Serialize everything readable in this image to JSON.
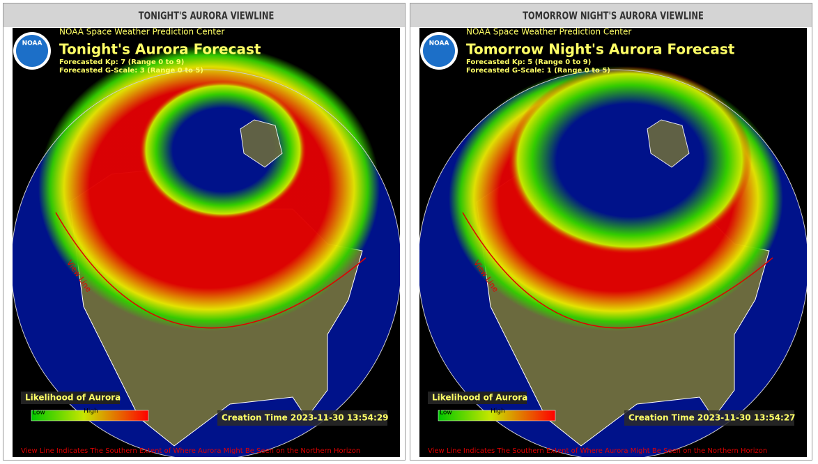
{
  "logo": "NOAA",
  "panels": [
    {
      "header": "TONIGHT'S AURORA VIEWLINE",
      "source": "NOAA Space Weather Prediction Center",
      "title": "Tonight's Aurora Forecast",
      "kp": "Forecasted Kp: 7 (Range 0 to 9)",
      "g_scale": "Forecasted G-Scale: 3 (Range 0 to 5)",
      "legend_title": "Likelihood of Aurora",
      "legend_low": "Low",
      "legend_high": "High",
      "creation_time": "Creation Time 2023-11-30 13:54:29",
      "view_line_label": "View Line",
      "footer": "View Line Indicates The Southern Extent of Where Aurora Might Be Seen on the Northern Horizon"
    },
    {
      "header": "TOMORROW NIGHT'S AURORA VIEWLINE",
      "source": "NOAA Space Weather Prediction Center",
      "title": "Tomorrow Night's Aurora Forecast",
      "kp": "Forecasted Kp: 5 (Range 0 to 9)",
      "g_scale": "Forecasted G-Scale: 1 (Range 0 to 5)",
      "legend_title": "Likelihood of Aurora",
      "legend_low": "Low",
      "legend_high": "High",
      "creation_time": "Creation Time 2023-11-30 13:54:27",
      "view_line_label": "View Line",
      "footer": "View Line Indicates The Southern Extent of Where Aurora Might Be Seen on the Northern Horizon"
    }
  ]
}
